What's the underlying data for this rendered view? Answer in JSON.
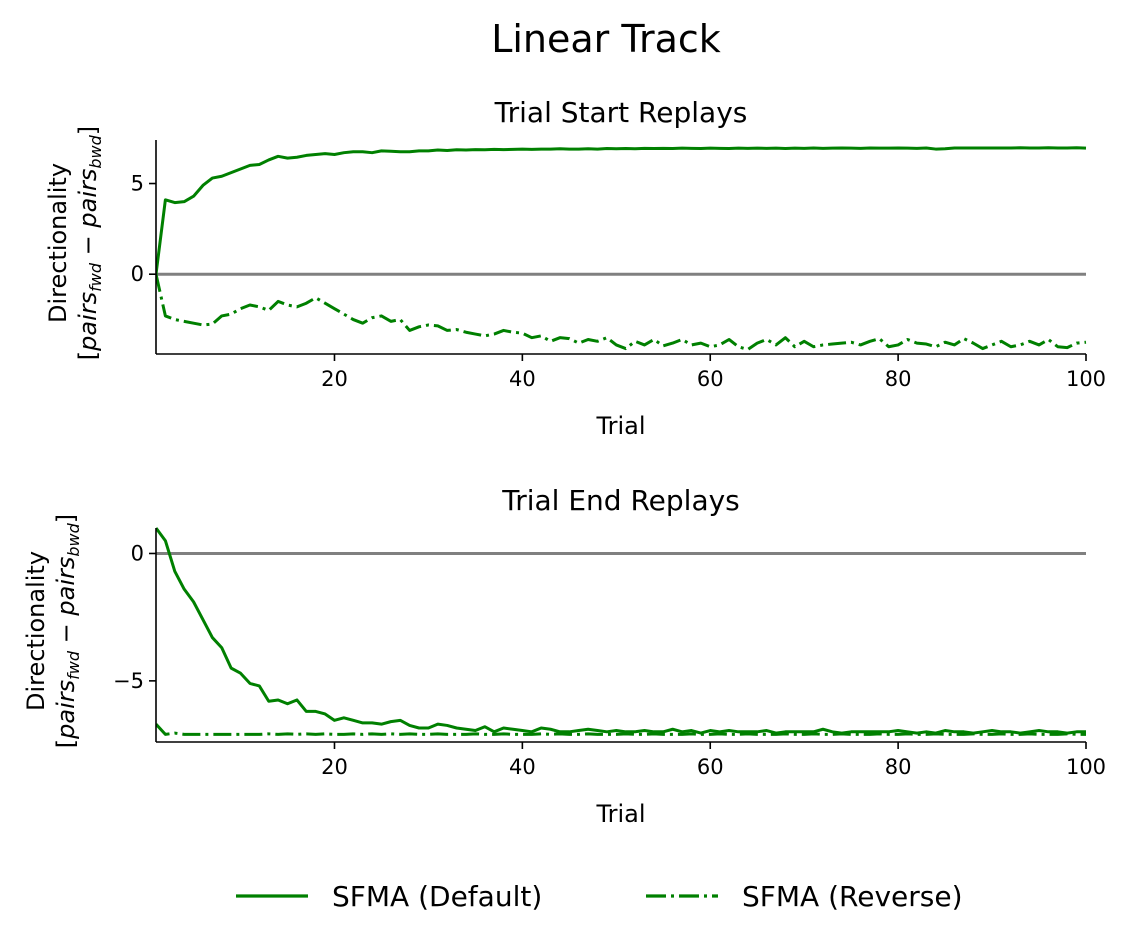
{
  "figure": {
    "title": "Linear Track",
    "legend": [
      {
        "label": "SFMA (Default)",
        "style": "solid"
      },
      {
        "label": "SFMA (Reverse)",
        "style": "dashdot"
      }
    ]
  },
  "chart_data": [
    {
      "type": "line",
      "title": "Trial Start Replays",
      "xlabel": "Trial",
      "ylabel_line1": "Directionality",
      "ylabel_line2": "[pairs_fwd − pairs_bwd]",
      "xlim": [
        1,
        100
      ],
      "ylim": [
        -4.4,
        7.4
      ],
      "xticks": [
        20,
        40,
        60,
        80,
        100
      ],
      "yticks": [
        0,
        5
      ],
      "ytick_labels": [
        "0",
        "5"
      ],
      "reference_line": {
        "y": 0,
        "color": "#808080"
      },
      "line_color": "#008000",
      "series": [
        {
          "name": "SFMA (Default)",
          "style": "solid",
          "x": [
            1,
            2,
            3,
            4,
            5,
            6,
            7,
            8,
            9,
            10,
            11,
            12,
            13,
            14,
            15,
            16,
            17,
            18,
            19,
            20,
            21,
            22,
            23,
            24,
            25,
            26,
            27,
            28,
            29,
            30,
            31,
            32,
            33,
            34,
            35,
            36,
            37,
            38,
            39,
            40,
            41,
            42,
            43,
            44,
            45,
            46,
            47,
            48,
            49,
            50,
            51,
            52,
            53,
            54,
            55,
            56,
            57,
            58,
            59,
            60,
            61,
            62,
            63,
            64,
            65,
            66,
            67,
            68,
            69,
            70,
            71,
            72,
            73,
            74,
            75,
            76,
            77,
            78,
            79,
            80,
            81,
            82,
            83,
            84,
            85,
            86,
            87,
            88,
            89,
            90,
            91,
            92,
            93,
            94,
            95,
            96,
            97,
            98,
            99,
            100
          ],
          "y": [
            0,
            4.1,
            3.95,
            4.0,
            4.3,
            4.9,
            5.3,
            5.4,
            5.6,
            5.8,
            6.0,
            6.05,
            6.3,
            6.5,
            6.4,
            6.45,
            6.55,
            6.6,
            6.65,
            6.6,
            6.7,
            6.75,
            6.75,
            6.7,
            6.8,
            6.78,
            6.75,
            6.75,
            6.8,
            6.8,
            6.85,
            6.82,
            6.86,
            6.85,
            6.87,
            6.86,
            6.88,
            6.87,
            6.88,
            6.9,
            6.88,
            6.9,
            6.9,
            6.92,
            6.9,
            6.9,
            6.92,
            6.9,
            6.93,
            6.92,
            6.93,
            6.92,
            6.94,
            6.93,
            6.94,
            6.93,
            6.95,
            6.94,
            6.93,
            6.95,
            6.94,
            6.93,
            6.95,
            6.94,
            6.95,
            6.94,
            6.95,
            6.93,
            6.95,
            6.94,
            6.96,
            6.94,
            6.95,
            6.96,
            6.95,
            6.94,
            6.96,
            6.95,
            6.95,
            6.96,
            6.95,
            6.94,
            6.96,
            6.9,
            6.92,
            6.96,
            6.96,
            6.96,
            6.96,
            6.96,
            6.96,
            6.96,
            6.97,
            6.96,
            6.96,
            6.97,
            6.96,
            6.96,
            6.97,
            6.95
          ]
        },
        {
          "name": "SFMA (Reverse)",
          "style": "dashdot",
          "x": [
            1,
            2,
            3,
            4,
            5,
            6,
            7,
            8,
            9,
            10,
            11,
            12,
            13,
            14,
            15,
            16,
            17,
            18,
            19,
            20,
            21,
            22,
            23,
            24,
            25,
            26,
            27,
            28,
            29,
            30,
            31,
            32,
            33,
            34,
            35,
            36,
            37,
            38,
            39,
            40,
            41,
            42,
            43,
            44,
            45,
            46,
            47,
            48,
            49,
            50,
            51,
            52,
            53,
            54,
            55,
            56,
            57,
            58,
            59,
            60,
            61,
            62,
            63,
            64,
            65,
            66,
            67,
            68,
            69,
            70,
            71,
            72,
            73,
            74,
            75,
            76,
            77,
            78,
            79,
            80,
            81,
            82,
            83,
            84,
            85,
            86,
            87,
            88,
            89,
            90,
            91,
            92,
            93,
            94,
            95,
            96,
            97,
            98,
            99,
            100
          ],
          "y": [
            0,
            -2.3,
            -2.5,
            -2.6,
            -2.7,
            -2.8,
            -2.75,
            -2.3,
            -2.2,
            -1.9,
            -1.7,
            -1.8,
            -2.0,
            -1.5,
            -1.7,
            -1.8,
            -1.6,
            -1.3,
            -1.6,
            -1.9,
            -2.2,
            -2.5,
            -2.7,
            -2.4,
            -2.3,
            -2.6,
            -2.5,
            -3.1,
            -2.9,
            -2.8,
            -2.85,
            -3.1,
            -3.05,
            -3.2,
            -3.3,
            -3.4,
            -3.3,
            -3.1,
            -3.2,
            -3.25,
            -3.5,
            -3.4,
            -3.7,
            -3.5,
            -3.55,
            -3.8,
            -3.6,
            -3.7,
            -3.5,
            -3.9,
            -4.1,
            -3.7,
            -3.9,
            -3.6,
            -3.95,
            -3.8,
            -3.6,
            -3.9,
            -3.8,
            -4.0,
            -3.9,
            -3.6,
            -4.0,
            -4.15,
            -3.8,
            -3.6,
            -3.9,
            -3.5,
            -4.0,
            -3.7,
            -4.0,
            -3.9,
            -3.85,
            -3.8,
            -3.75,
            -3.9,
            -3.7,
            -3.55,
            -4.0,
            -3.9,
            -3.6,
            -3.8,
            -3.85,
            -4.0,
            -3.75,
            -3.9,
            -3.55,
            -3.8,
            -4.1,
            -3.9,
            -3.7,
            -4.0,
            -3.9,
            -3.7,
            -3.9,
            -3.6,
            -4.0,
            -4.05,
            -3.8,
            -3.75
          ]
        }
      ]
    },
    {
      "type": "line",
      "title": "Trial End Replays",
      "xlabel": "Trial",
      "ylabel_line1": "Directionality",
      "ylabel_line2": "[pairs_fwd − pairs_bwd]",
      "xlim": [
        1,
        100
      ],
      "ylim": [
        -7.4,
        1.0
      ],
      "xticks": [
        20,
        40,
        60,
        80,
        100
      ],
      "yticks": [
        -5,
        0
      ],
      "ytick_labels": [
        "−5",
        "0"
      ],
      "reference_line": {
        "y": 0,
        "color": "#808080"
      },
      "line_color": "#008000",
      "series": [
        {
          "name": "SFMA (Default)",
          "style": "solid",
          "x": [
            1,
            2,
            3,
            4,
            5,
            6,
            7,
            8,
            9,
            10,
            11,
            12,
            13,
            14,
            15,
            16,
            17,
            18,
            19,
            20,
            21,
            22,
            23,
            24,
            25,
            26,
            27,
            28,
            29,
            30,
            31,
            32,
            33,
            34,
            35,
            36,
            37,
            38,
            39,
            40,
            41,
            42,
            43,
            44,
            45,
            46,
            47,
            48,
            49,
            50,
            51,
            52,
            53,
            54,
            55,
            56,
            57,
            58,
            59,
            60,
            61,
            62,
            63,
            64,
            65,
            66,
            67,
            68,
            69,
            70,
            71,
            72,
            73,
            74,
            75,
            76,
            77,
            78,
            79,
            80,
            81,
            82,
            83,
            84,
            85,
            86,
            87,
            88,
            89,
            90,
            91,
            92,
            93,
            94,
            95,
            96,
            97,
            98,
            99,
            100
          ],
          "y": [
            1.0,
            0.5,
            -0.7,
            -1.4,
            -1.9,
            -2.6,
            -3.3,
            -3.7,
            -4.5,
            -4.7,
            -5.1,
            -5.2,
            -5.8,
            -5.75,
            -5.9,
            -5.75,
            -6.2,
            -6.2,
            -6.3,
            -6.55,
            -6.45,
            -6.55,
            -6.65,
            -6.65,
            -6.7,
            -6.6,
            -6.55,
            -6.75,
            -6.85,
            -6.85,
            -6.7,
            -6.75,
            -6.85,
            -6.9,
            -6.95,
            -6.8,
            -7.0,
            -6.85,
            -6.9,
            -6.95,
            -7.0,
            -6.85,
            -6.9,
            -7.0,
            -7.0,
            -6.95,
            -6.9,
            -6.95,
            -7.0,
            -6.95,
            -7.0,
            -7.0,
            -6.95,
            -7.0,
            -7.0,
            -6.9,
            -7.0,
            -6.95,
            -7.05,
            -6.95,
            -7.0,
            -6.95,
            -7.0,
            -7.0,
            -7.0,
            -6.95,
            -7.05,
            -7.0,
            -7.0,
            -7.0,
            -7.0,
            -6.9,
            -7.0,
            -7.05,
            -7.0,
            -7.0,
            -7.0,
            -7.0,
            -7.0,
            -6.95,
            -7.0,
            -7.05,
            -7.0,
            -7.05,
            -6.95,
            -7.0,
            -7.0,
            -7.05,
            -7.0,
            -6.95,
            -7.0,
            -7.0,
            -7.05,
            -7.0,
            -6.95,
            -7.0,
            -7.0,
            -7.05,
            -7.0,
            -7.0
          ]
        },
        {
          "name": "SFMA (Reverse)",
          "style": "dashdot",
          "x": [
            1,
            2,
            3,
            4,
            5,
            6,
            7,
            8,
            9,
            10,
            11,
            12,
            13,
            14,
            15,
            16,
            17,
            18,
            19,
            20,
            21,
            22,
            23,
            24,
            25,
            26,
            27,
            28,
            29,
            30,
            31,
            32,
            33,
            34,
            35,
            36,
            37,
            38,
            39,
            40,
            41,
            42,
            43,
            44,
            45,
            46,
            47,
            48,
            49,
            50,
            51,
            52,
            53,
            54,
            55,
            56,
            57,
            58,
            59,
            60,
            61,
            62,
            63,
            64,
            65,
            66,
            67,
            68,
            69,
            70,
            71,
            72,
            73,
            74,
            75,
            76,
            77,
            78,
            79,
            80,
            81,
            82,
            83,
            84,
            85,
            86,
            87,
            88,
            89,
            90,
            91,
            92,
            93,
            94,
            95,
            96,
            97,
            98,
            99,
            100
          ],
          "y": [
            -6.7,
            -7.1,
            -7.05,
            -7.1,
            -7.1,
            -7.1,
            -7.1,
            -7.1,
            -7.1,
            -7.1,
            -7.1,
            -7.1,
            -7.08,
            -7.1,
            -7.08,
            -7.1,
            -7.08,
            -7.1,
            -7.08,
            -7.1,
            -7.1,
            -7.08,
            -7.1,
            -7.08,
            -7.1,
            -7.08,
            -7.1,
            -7.08,
            -7.1,
            -7.1,
            -7.08,
            -7.1,
            -7.1,
            -7.1,
            -7.08,
            -7.1,
            -7.1,
            -7.08,
            -7.1,
            -7.1,
            -7.1,
            -7.08,
            -7.1,
            -7.08,
            -7.1,
            -7.1,
            -7.08,
            -7.1,
            -7.1,
            -7.1,
            -7.08,
            -7.1,
            -7.1,
            -7.08,
            -7.1,
            -7.1,
            -7.1,
            -7.08,
            -7.1,
            -7.1,
            -7.08,
            -7.1,
            -7.1,
            -7.08,
            -7.1,
            -7.1,
            -7.1,
            -7.08,
            -7.1,
            -7.1,
            -7.08,
            -7.1,
            -7.1,
            -7.08,
            -7.1,
            -7.1,
            -7.1,
            -7.08,
            -7.1,
            -7.1,
            -7.08,
            -7.1,
            -7.1,
            -7.08,
            -7.1,
            -7.1,
            -7.1,
            -7.08,
            -7.1,
            -7.1,
            -7.08,
            -7.1,
            -7.1,
            -7.08,
            -7.1,
            -7.1,
            -7.1,
            -7.08,
            -7.1,
            -7.1
          ]
        }
      ]
    }
  ]
}
